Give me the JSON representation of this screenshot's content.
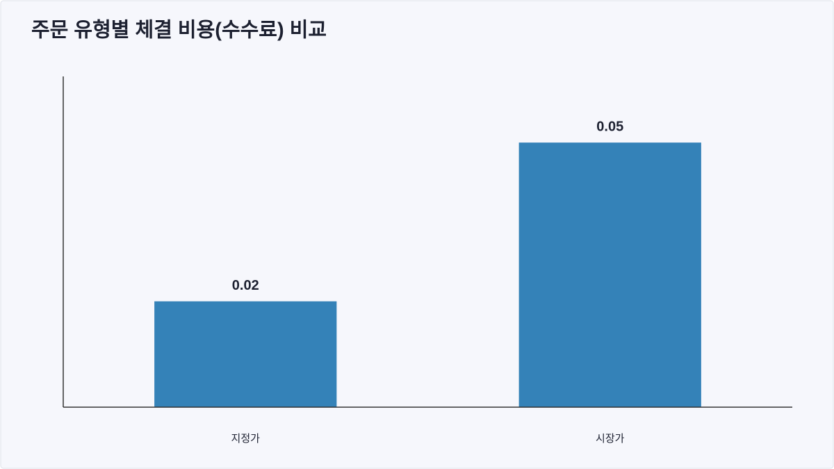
{
  "chart_data": {
    "type": "bar",
    "title": "주문 유형별 체결 비용(수수료) 비교",
    "categories": [
      "지정가",
      "시장가"
    ],
    "values": [
      0.02,
      0.05
    ],
    "color": "#3482b8",
    "ylim": [
      0,
      0.0625
    ]
  }
}
